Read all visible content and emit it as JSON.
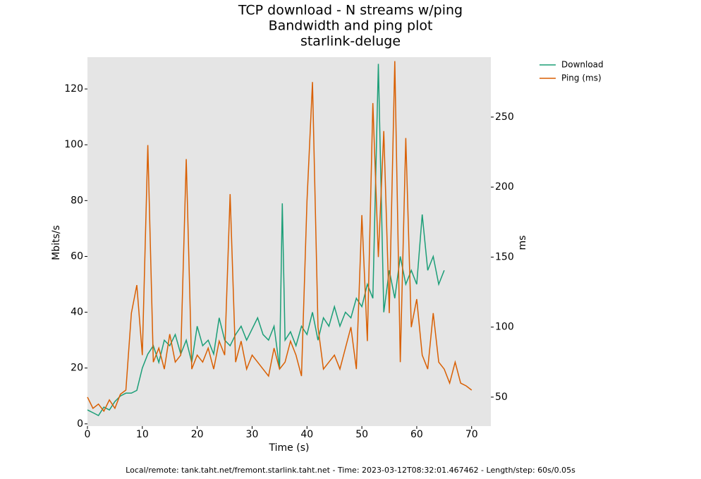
{
  "chart_data": {
    "type": "line",
    "title": [
      "TCP download - N streams w/ping",
      "Bandwidth and ping plot",
      "starlink-deluge"
    ],
    "footer": "Local/remote: tank.taht.net/fremont.starlink.taht.net - Time: 2023-03-12T08:32:01.467462 - Length/step: 60s/0.05s",
    "xlabel": "Time (s)",
    "ylabel": "Mbits/s",
    "y2label": "ms",
    "xlim": [
      0,
      73.5
    ],
    "ylim": [
      -0.8,
      131.4
    ],
    "y2lim": [
      29.3,
      292.8
    ],
    "xticks": [
      0,
      10,
      20,
      30,
      40,
      50,
      60,
      70
    ],
    "yticks": [
      0,
      20,
      40,
      60,
      80,
      100,
      120
    ],
    "y2ticks": [
      50,
      100,
      150,
      200,
      250
    ],
    "grid": false,
    "legend": "outside-upper-right",
    "series": [
      {
        "name": "Download",
        "color": "#1b9e77",
        "x": [
          0,
          1,
          2,
          3,
          4,
          5,
          6,
          7,
          8,
          9,
          10,
          11,
          12,
          13,
          14,
          15,
          16,
          17,
          18,
          19,
          20,
          21,
          22,
          23,
          24,
          25,
          26,
          27,
          28,
          29,
          30,
          31,
          32,
          33,
          34,
          35,
          35.5,
          36,
          37,
          38,
          39,
          40,
          41,
          42,
          43,
          44,
          45,
          46,
          47,
          48,
          49,
          50,
          51,
          52,
          53,
          54,
          55,
          56,
          57,
          58,
          59,
          60,
          61,
          62,
          63,
          64,
          65
        ],
        "values": [
          5,
          4,
          3,
          6,
          5,
          8,
          10,
          11,
          11,
          12,
          20,
          25,
          28,
          22,
          30,
          28,
          32,
          25,
          30,
          22,
          35,
          28,
          30,
          25,
          38,
          30,
          28,
          32,
          35,
          30,
          34,
          38,
          32,
          30,
          35,
          20,
          79,
          30,
          33,
          28,
          35,
          32,
          40,
          30,
          38,
          35,
          42,
          35,
          40,
          38,
          45,
          42,
          50,
          45,
          129,
          40,
          55,
          45,
          60,
          50,
          55,
          50,
          75,
          55,
          60,
          50,
          55
        ]
      },
      {
        "name": "Ping (ms)",
        "color": "#d95f02",
        "axis": "y2",
        "x": [
          0,
          1,
          2,
          3,
          4,
          5,
          6,
          7,
          8,
          9,
          10,
          11,
          12,
          13,
          14,
          15,
          16,
          17,
          18,
          19,
          20,
          21,
          22,
          23,
          24,
          25,
          26,
          27,
          28,
          29,
          30,
          31,
          32,
          33,
          34,
          35,
          36,
          37,
          38,
          39,
          40,
          41,
          42,
          43,
          44,
          45,
          46,
          47,
          48,
          49,
          50,
          51,
          52,
          53,
          54,
          55,
          56,
          57,
          58,
          59,
          60,
          61,
          62,
          63,
          64,
          65,
          66,
          67,
          68,
          69,
          70
        ],
        "values": [
          50,
          42,
          45,
          40,
          48,
          42,
          52,
          55,
          110,
          130,
          80,
          230,
          75,
          85,
          70,
          95,
          75,
          80,
          220,
          70,
          80,
          75,
          85,
          70,
          90,
          80,
          195,
          75,
          90,
          70,
          80,
          75,
          70,
          65,
          85,
          70,
          75,
          90,
          80,
          65,
          190,
          275,
          100,
          70,
          75,
          80,
          70,
          85,
          100,
          70,
          180,
          90,
          260,
          150,
          240,
          110,
          290,
          75,
          235,
          100,
          120,
          80,
          70,
          110,
          75,
          70,
          60,
          75,
          60,
          58,
          55
        ]
      }
    ]
  }
}
